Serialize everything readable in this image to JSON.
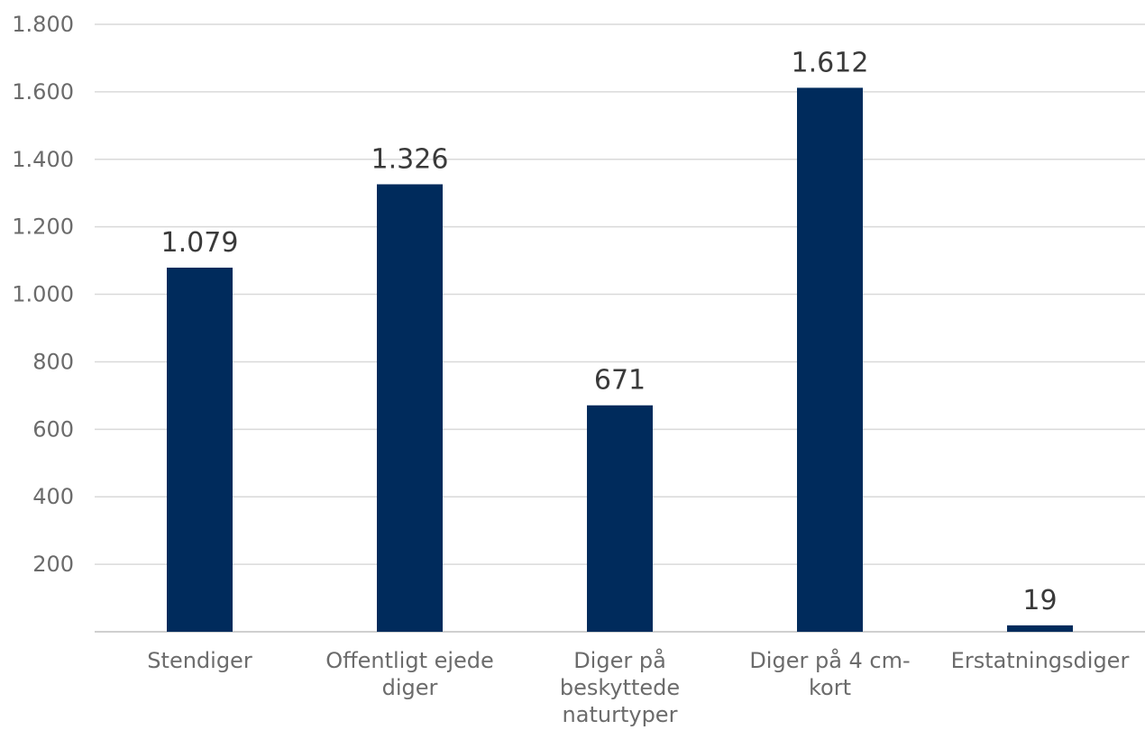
{
  "chart_data": {
    "type": "bar",
    "categories": [
      [
        "Stendiger"
      ],
      [
        "Offentligt ejede",
        "diger"
      ],
      [
        "Diger på",
        "beskyttede",
        "naturtyper"
      ],
      [
        "Diger på 4 cm-",
        "kort"
      ],
      [
        "Erstatningsdiger"
      ]
    ],
    "values": [
      1079,
      1326,
      671,
      1612,
      19
    ],
    "data_labels": [
      "1.079",
      "1.326",
      "671",
      "1.612",
      "19"
    ],
    "y_ticks": [
      200,
      400,
      600,
      800,
      1000,
      1200,
      1400,
      1600,
      1800
    ],
    "y_tick_labels": [
      "200",
      "400",
      "600",
      "800",
      "1.000",
      "1.200",
      "1.400",
      "1.600",
      "1.800"
    ],
    "ylim": [
      0,
      1800
    ],
    "grid": true,
    "legend": "none",
    "bar_color": "#002b5c"
  }
}
